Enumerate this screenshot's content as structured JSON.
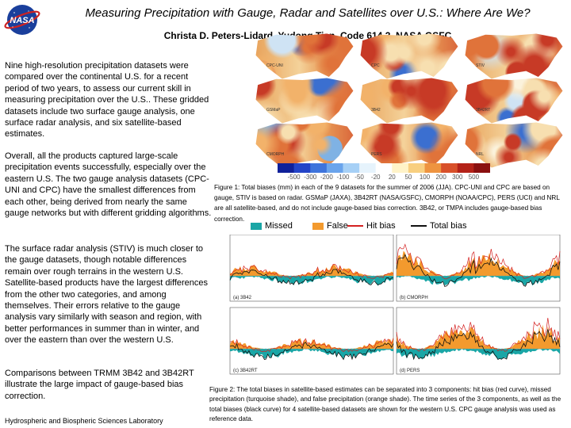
{
  "logo": {
    "text": "NASA",
    "colors": {
      "blue": "#1a3f9c",
      "red": "#cc2222"
    }
  },
  "header": {
    "title": "Measuring Precipitation with Gauge, Radar and Satellites over U.S.: Where Are We?",
    "authors": "Christa D. Peters-Lidard, Yudong Tian, Code 614.3, NASA GSFC"
  },
  "body": {
    "paragraph_1": "Nine high-resolution precipitation datasets were compared over the continental U.S. for a recent period of two years, to assess our current skill in measuring precipitation over the U.S.. These gridded datasets include two surface gauge analysis, one surface radar analysis, and six satellite-based estimates.",
    "paragraph_2": "Overall, all the products captured large-scale precipitation events successfully, especially over the eastern U.S. The two gauge analysis datasets (CPC-UNI and CPC) have the smallest differences from each other, being derived from nearly the same gauge networks but with different gridding algorithms.",
    "paragraph_3": "The surface radar analysis (STIV) is much closer to the gauge datasets, though notable differences remain over rough terrains in the western U.S. Satellite-based products have the largest differences from the other two categories, and among themselves. Their errors relative to the gauge analysis vary similarly with season and region, with better performances in summer than in winter, and over the eastern than over the western U.S.",
    "paragraph_4": "Comparisons between TRMM 3B42 and 3B42RT illustrate the large impact of gauge-based bias correction.",
    "footer": "Hydrospheric and Biospheric Sciences Laboratory"
  },
  "figure1": {
    "panels": [
      "CPC-UNI",
      "CPC",
      "STIV",
      "GSMaP",
      "3B42",
      "3B42RT",
      "CMORPH",
      "PERS",
      "NRL"
    ],
    "colorbar_ticks": [
      "-500",
      "-300",
      "-200",
      "-100",
      "-50",
      "-20",
      "20",
      "50",
      "100",
      "200",
      "300",
      "500"
    ],
    "colorbar_colors": [
      "#10209a",
      "#2444c8",
      "#3e74dc",
      "#6aa4ec",
      "#a6d0f6",
      "#e6f3fc",
      "#ffffff",
      "#fff3c8",
      "#f8cf80",
      "#ee9440",
      "#d8502a",
      "#b42218",
      "#8a1010"
    ],
    "caption": "Figure 1: Total biases (mm) in each of the 9 datasets for the summer of 2006 (JJA). CPC-UNI and CPC are based on gauge, STIV is based on radar. GSMaP (JAXA), 3B42RT (NASA/GSFC), CMORPH (NOAA/CPC), PERS (UCI) and NRL are all satellite-based, and do not include gauge-based bias correction. 3B42, or TMPA includes gauge-based bias correction."
  },
  "figure2": {
    "legend": [
      {
        "label": "Missed",
        "color": "#1aa6a6"
      },
      {
        "label": "False",
        "color": "#f39a2e"
      },
      {
        "label": "Hit bias",
        "color": "#d42020"
      },
      {
        "label": "Total bias",
        "color": "#111111"
      }
    ],
    "panel_labels": [
      "(a) 3B42",
      "(b) CMORPH",
      "(c) 3B42RT",
      "(d) PERS"
    ],
    "caption": "Figure 2: The total biases in satellite-based estimates can be separated into 3 components: hit bias (red curve), missed precipitation (turquoise shade), and false precipitation (orange shade). The time series of the 3 components, as well as the total biases (black curve) for 4 satellite-based datasets are shown for the western U.S. CPC gauge analysis was used as reference data."
  }
}
